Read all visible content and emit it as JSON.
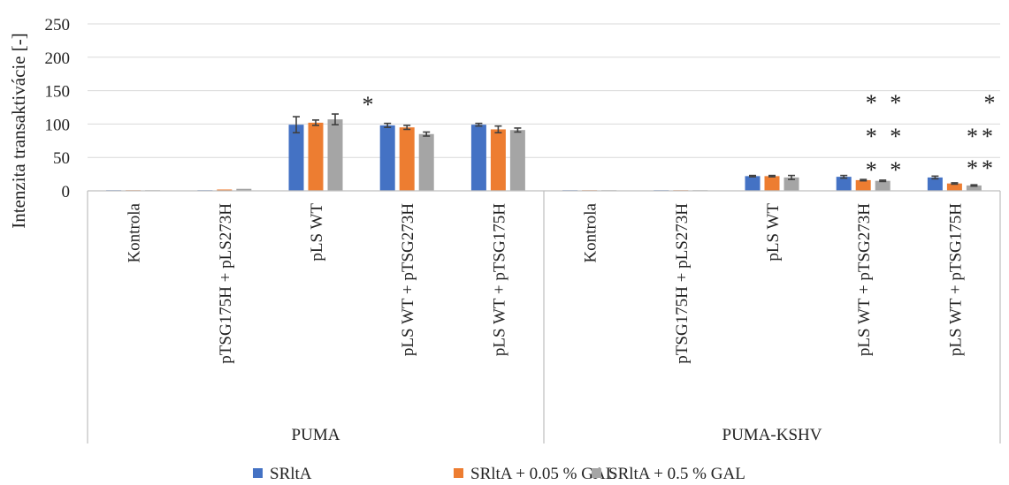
{
  "chart_data": {
    "type": "bar",
    "ylabel": "Intenzita transaktivácie [-]",
    "ylim": [
      0,
      250
    ],
    "yticks": [
      0,
      50,
      100,
      150,
      200,
      250
    ],
    "grid": true,
    "legend_position": "bottom",
    "groups": [
      {
        "name": "PUMA",
        "categories": [
          "Kontrola",
          "pTSG175H + pLS273H",
          "pLS WT",
          "pLS WT + pTSG273H",
          "pLS WT + pTSG175H"
        ]
      },
      {
        "name": "PUMA-KSHV",
        "categories": [
          "Kontrola",
          "pTSG175H + pLS273H",
          "pLS WT",
          "pLS WT + pTSG273H",
          "pLS WT + pTSG175H"
        ]
      }
    ],
    "series": [
      {
        "name": "SRltA",
        "color": "#4472C4",
        "values": [
          1,
          1,
          99,
          98,
          99,
          1,
          1,
          22,
          21,
          20
        ],
        "errors": [
          0,
          0,
          12,
          3,
          2,
          0,
          0,
          1,
          2,
          2
        ]
      },
      {
        "name": "SRltA + 0.05 % GAL",
        "color": "#ED7D31",
        "values": [
          1,
          2,
          102,
          95,
          92,
          1,
          1,
          22,
          16,
          11
        ],
        "errors": [
          0,
          0,
          4,
          3,
          5,
          0,
          0,
          1,
          1,
          1
        ]
      },
      {
        "name": "SRltA + 0.5 % GAL",
        "color": "#A5A5A5",
        "values": [
          1,
          3,
          107,
          85,
          91,
          1,
          1,
          20,
          15,
          8
        ],
        "errors": [
          0,
          0,
          8,
          3,
          3,
          0,
          0,
          3,
          1,
          1
        ]
      }
    ],
    "annotations": [
      {
        "text": "*",
        "category_index": 3
      },
      {
        "text": "* *",
        "category_index": 8
      },
      {
        "text": "* *",
        "category_index": 8
      },
      {
        "text": "* *",
        "category_index": 8
      },
      {
        "text": "*",
        "category_index": 9
      },
      {
        "text": "**",
        "category_index": 9
      },
      {
        "text": "**",
        "category_index": 9
      }
    ]
  }
}
